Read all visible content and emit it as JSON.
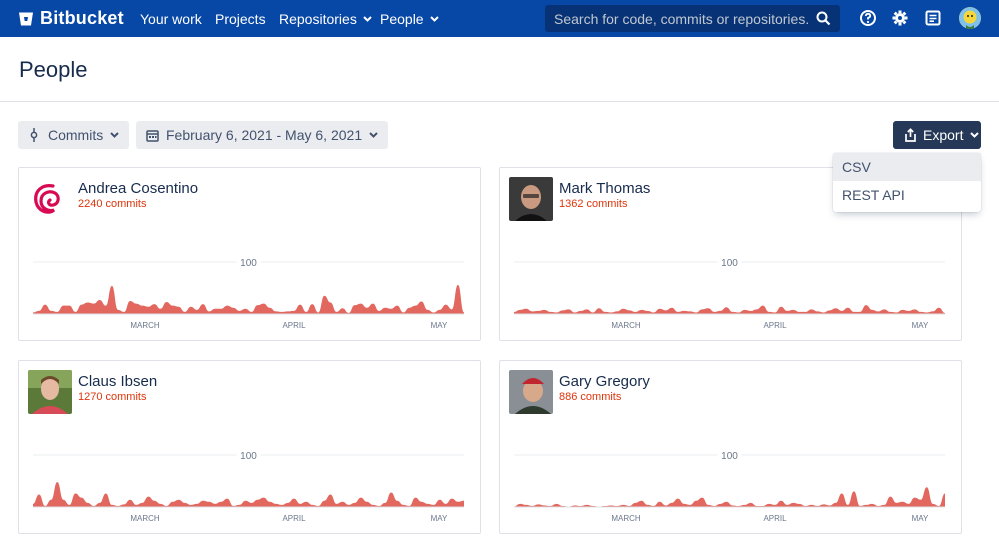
{
  "nav": {
    "brand": "Bitbucket",
    "links": [
      "Your work",
      "Projects",
      "Repositories",
      "People"
    ],
    "search_placeholder": "Search for code, commits or repositories...",
    "icons": [
      "help-icon",
      "settings-icon",
      "notifications-icon",
      "user-avatar"
    ]
  },
  "page": {
    "title": "People"
  },
  "filters": {
    "metric": "Commits",
    "date_range": "February 6, 2021 - May 6, 2021",
    "export": "Export"
  },
  "export_menu": {
    "items": [
      "CSV",
      "REST API"
    ],
    "highlighted": "CSV"
  },
  "colors": {
    "nav": "#0747a6",
    "chart": "#e2685f",
    "commits_text": "#de350b",
    "export_btn": "#253858"
  },
  "people": [
    {
      "name": "Andrea Cosentino",
      "commits": "2240 commits",
      "avatar": "debian-swirl-logo"
    },
    {
      "name": "Mark Thomas",
      "commits": "1362 commits",
      "avatar": "photo-mark-thomas"
    },
    {
      "name": "Claus Ibsen",
      "commits": "1270 commits",
      "avatar": "photo-claus-ibsen"
    },
    {
      "name": "Gary Gregory",
      "commits": "886 commits",
      "avatar": "photo-gary-gregory"
    }
  ],
  "chart_data": [
    {
      "type": "area",
      "series": [
        {
          "name": "Andrea Cosentino",
          "values": [
            3,
            6,
            18,
            6,
            4,
            16,
            16,
            4,
            18,
            22,
            20,
            27,
            16,
            54,
            8,
            4,
            25,
            20,
            16,
            14,
            19,
            10,
            23,
            16,
            14,
            4,
            14,
            8,
            19,
            5,
            10,
            10,
            16,
            12,
            6,
            10,
            4,
            17,
            20,
            12,
            5,
            4,
            5,
            6,
            18,
            4,
            19,
            3,
            35,
            22,
            4,
            11,
            2,
            17,
            20,
            12,
            20,
            6,
            12,
            10,
            16,
            3,
            12,
            16,
            24,
            8,
            3,
            8,
            18,
            9,
            56,
            3
          ]
        }
      ],
      "y_gridline": 100,
      "x_ticks": [
        "MARCH",
        "APRIL",
        "MAY"
      ]
    },
    {
      "type": "area",
      "series": [
        {
          "name": "Mark Thomas",
          "values": [
            4,
            8,
            10,
            5,
            6,
            8,
            4,
            3,
            7,
            9,
            3,
            6,
            9,
            3,
            11,
            4,
            3,
            5,
            10,
            7,
            4,
            8,
            6,
            3,
            10,
            7,
            12,
            4,
            6,
            5,
            3,
            9,
            11,
            4,
            6,
            13,
            4,
            3,
            8,
            6,
            9,
            16,
            4,
            3,
            14,
            6,
            8,
            4,
            4,
            9,
            5,
            3,
            7,
            11,
            6,
            12,
            4,
            4,
            17,
            8,
            5,
            9,
            4,
            3,
            8,
            6,
            9,
            4,
            3,
            5,
            12,
            2
          ]
        }
      ],
      "y_gridline": 100,
      "x_ticks": [
        "MARCH",
        "APRIL",
        "MAY"
      ]
    },
    {
      "type": "area",
      "series": [
        {
          "name": "Claus Ibsen",
          "values": [
            6,
            24,
            2,
            14,
            48,
            14,
            4,
            26,
            18,
            8,
            2,
            8,
            26,
            4,
            2,
            5,
            14,
            4,
            8,
            20,
            12,
            6,
            2,
            10,
            14,
            8,
            4,
            6,
            12,
            10,
            6,
            10,
            16,
            2,
            4,
            12,
            8,
            14,
            18,
            10,
            6,
            4,
            8,
            16,
            6,
            10,
            4,
            2,
            12,
            24,
            6,
            10,
            4,
            8,
            18,
            10,
            4,
            2,
            8,
            28,
            12,
            4,
            2,
            18,
            10,
            6,
            4,
            14,
            6,
            16,
            10,
            12
          ]
        }
      ],
      "y_gridline": 100,
      "x_ticks": [
        "MARCH",
        "APRIL",
        "MAY"
      ]
    },
    {
      "type": "area",
      "series": [
        {
          "name": "Gary Gregory",
          "values": [
            1,
            6,
            4,
            2,
            5,
            3,
            2,
            6,
            2,
            1,
            3,
            2,
            4,
            2,
            1,
            2,
            3,
            2,
            4,
            2,
            8,
            12,
            4,
            2,
            10,
            3,
            8,
            16,
            6,
            4,
            12,
            18,
            4,
            2,
            6,
            10,
            3,
            2,
            4,
            8,
            2,
            2,
            6,
            4,
            12,
            4,
            8,
            6,
            2,
            4,
            2,
            5,
            3,
            8,
            26,
            4,
            30,
            2,
            4,
            6,
            2,
            4,
            20,
            8,
            10,
            6,
            18,
            14,
            38,
            6,
            2,
            26
          ]
        }
      ],
      "y_gridline": 100,
      "x_ticks": [
        "MARCH",
        "APRIL",
        "MAY"
      ]
    }
  ]
}
